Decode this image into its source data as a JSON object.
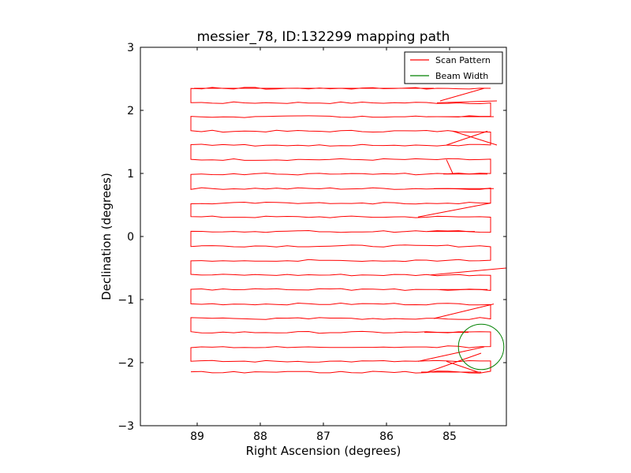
{
  "chart_data": {
    "type": "line",
    "title": "messier_78, ID:132299 mapping path",
    "xlabel": "Right Ascension (degrees)",
    "ylabel": "Declination (degrees)",
    "xlim": [
      89.9,
      84.1
    ],
    "ylim": [
      -3,
      3
    ],
    "x_ticks": [
      89,
      88,
      87,
      86,
      85
    ],
    "x_tick_labels": [
      "89",
      "88",
      "87",
      "86",
      "85"
    ],
    "y_ticks": [
      -3,
      -2,
      -1,
      0,
      1,
      2,
      3
    ],
    "y_tick_labels": [
      "−3",
      "−2",
      "−1",
      "0",
      "1",
      "2",
      "3"
    ],
    "grid": false,
    "legend_position": "top-right",
    "scan_rows": [
      2.35,
      2.12,
      1.9,
      1.67,
      1.45,
      1.22,
      0.99,
      0.76,
      0.53,
      0.31,
      0.08,
      -0.15,
      -0.38,
      -0.61,
      -0.84,
      -1.07,
      -1.3,
      -1.52,
      -1.75,
      -1.98,
      -2.15
    ],
    "scan_x_range": [
      89.1,
      84.35
    ],
    "series": [
      {
        "name": "Scan Pattern",
        "color": "#ff0000",
        "x": [
          89.05,
          85.25,
          85.15,
          84.45,
          84.25,
          85.2,
          85.35,
          84.3,
          84.4,
          85.05,
          84.95,
          84.25,
          85.05,
          84.95,
          84.4,
          85.1,
          85.25,
          84.3,
          84.35,
          85.5,
          85.35,
          84.6,
          84.1,
          85.3,
          85.15,
          84.4,
          84.3,
          85.25,
          85.4,
          84.7,
          84.45,
          85.5,
          85.35,
          84.5,
          84.55,
          85.2,
          85.05,
          84.55,
          84.5,
          85.45
        ],
        "y": [
          2.35,
          2.35,
          2.15,
          2.35,
          2.15,
          2.12,
          1.9,
          1.9,
          1.67,
          1.45,
          1.67,
          1.45,
          1.22,
          1.0,
          0.99,
          0.99,
          0.76,
          0.76,
          0.53,
          0.31,
          0.08,
          0.08,
          -0.5,
          -0.61,
          -0.84,
          -0.84,
          -1.07,
          -1.3,
          -1.52,
          -1.52,
          -1.75,
          -1.98,
          -2.15,
          -1.85,
          -2.15,
          -2.15,
          -1.98,
          -2.15,
          -2.15,
          -2.15
        ]
      },
      {
        "name": "Beam Width",
        "color": "#008000",
        "shape": "circle",
        "center": [
          84.5,
          -1.75
        ],
        "radius": 0.36
      }
    ]
  }
}
